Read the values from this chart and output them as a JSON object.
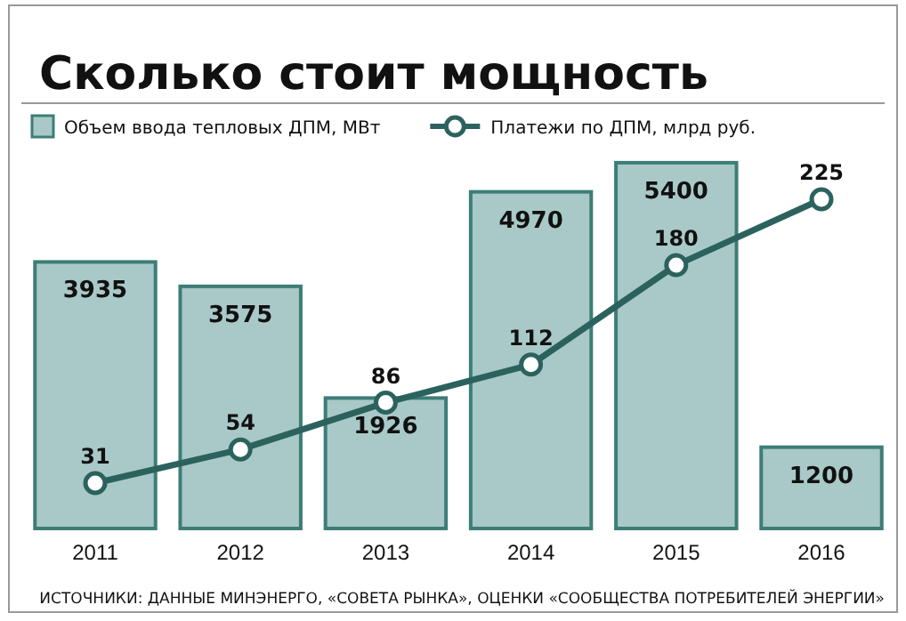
{
  "chart_data": {
    "type": "bar",
    "title": "Сколько стоит мощность",
    "categories": [
      "2011",
      "2012",
      "2013",
      "2014",
      "2015",
      "2016"
    ],
    "series": [
      {
        "name": "Объем ввода тепловых ДПМ, МВт",
        "color": "#a8c9c7",
        "values": [
          3935,
          3575,
          1926,
          4970,
          5400,
          1200
        ]
      },
      {
        "name": "Платежи по ДПМ, млрд руб.",
        "type": "line",
        "axis": "y2",
        "color": "#2b625e",
        "marker": "circle",
        "values": [
          31,
          54,
          86,
          112,
          180,
          225
        ]
      }
    ],
    "data_labels": true,
    "tick_labels": "x",
    "legend": "top left",
    "annotations": [
      "ИСТОЧНИКИ: ДАННЫЕ МИНЭНЕРГО, «СОВЕТА РЫНКА», ОЦЕНКИ «СООБЩЕСТВА ПОТРЕБИТЕЛЕЙ ЭНЕРГИИ»"
    ]
  }
}
